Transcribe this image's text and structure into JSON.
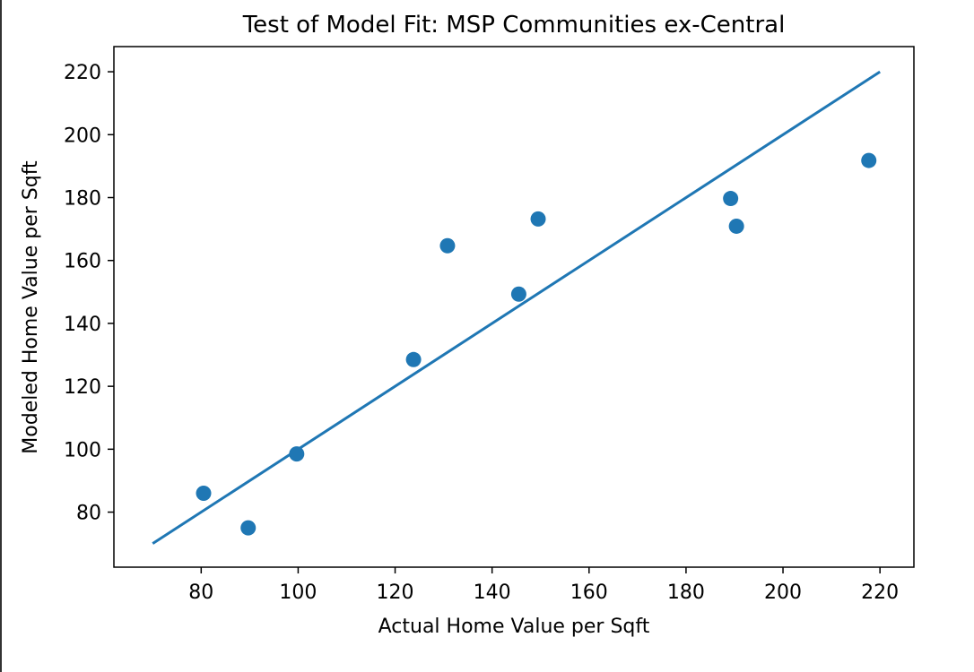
{
  "chart_data": {
    "type": "scatter",
    "title": "Test of Model Fit: MSP Communities ex-Central",
    "xlabel": "Actual Home Value per Sqft",
    "ylabel": "Modeled Home Value per Sqft",
    "xlim": [
      62,
      227
    ],
    "ylim": [
      62.5,
      228
    ],
    "xticks": [
      80,
      100,
      120,
      140,
      160,
      180,
      200,
      220
    ],
    "yticks": [
      80,
      100,
      120,
      140,
      160,
      180,
      200,
      220
    ],
    "grid": false,
    "color": "#1f77b4",
    "points": [
      {
        "x": 80.5,
        "y": 86
      },
      {
        "x": 89.7,
        "y": 75
      },
      {
        "x": 99.7,
        "y": 98.5
      },
      {
        "x": 123.8,
        "y": 128.5
      },
      {
        "x": 130.8,
        "y": 164.7
      },
      {
        "x": 145.5,
        "y": 149.3
      },
      {
        "x": 149.5,
        "y": 173.2
      },
      {
        "x": 189.2,
        "y": 179.7
      },
      {
        "x": 190.4,
        "y": 170.9
      },
      {
        "x": 217.7,
        "y": 191.8
      }
    ],
    "reference_line": {
      "x": [
        70,
        220
      ],
      "y": [
        70,
        220
      ]
    }
  }
}
